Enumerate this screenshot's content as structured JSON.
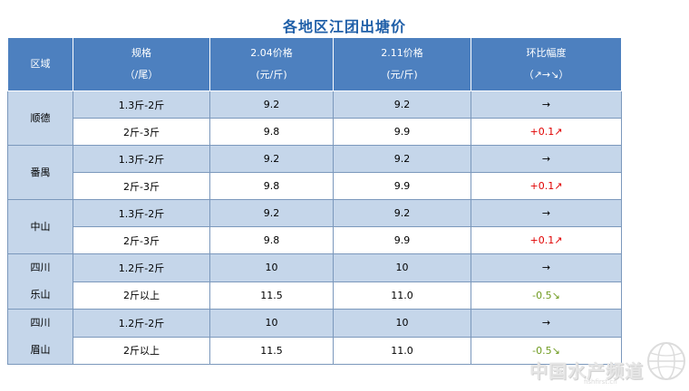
{
  "title": "各地区江团出塘价",
  "header": {
    "region": "区域",
    "spec_l1": "规格",
    "spec_l2": "（/尾）",
    "price1_l1": "2.04价格",
    "price1_l2": "(元/斤)",
    "price2_l1": "2.11价格",
    "price2_l2": "(元/斤)",
    "change_l1": "环比幅度",
    "change_l2": "（↗→↘）"
  },
  "regions": [
    {
      "line1": "顺德",
      "line2": ""
    },
    {
      "line1": "番禺",
      "line2": ""
    },
    {
      "line1": "中山",
      "line2": ""
    },
    {
      "line1": "四川",
      "line2": "乐山"
    },
    {
      "line1": "四川",
      "line2": "眉山"
    }
  ],
  "rows": [
    {
      "spec": "1.3斤-2斤",
      "p1": "9.2",
      "p2": "9.2",
      "change": "→",
      "trend": "flat"
    },
    {
      "spec": "2斤-3斤",
      "p1": "9.8",
      "p2": "9.9",
      "change": "+0.1↗",
      "trend": "up"
    },
    {
      "spec": "1.3斤-2斤",
      "p1": "9.2",
      "p2": "9.2",
      "change": "→",
      "trend": "flat"
    },
    {
      "spec": "2斤-3斤",
      "p1": "9.8",
      "p2": "9.9",
      "change": "+0.1↗",
      "trend": "up"
    },
    {
      "spec": "1.3斤-2斤",
      "p1": "9.2",
      "p2": "9.2",
      "change": "→",
      "trend": "flat"
    },
    {
      "spec": "2斤-3斤",
      "p1": "9.8",
      "p2": "9.9",
      "change": "+0.1↗",
      "trend": "up"
    },
    {
      "spec": "1.2斤-2斤",
      "p1": "10",
      "p2": "10",
      "change": "→",
      "trend": "flat"
    },
    {
      "spec": "2斤以上",
      "p1": "11.5",
      "p2": "11.0",
      "change": "-0.5↘",
      "trend": "down"
    },
    {
      "spec": "1.2斤-2斤",
      "p1": "10",
      "p2": "10",
      "change": "→",
      "trend": "flat"
    },
    {
      "spec": "2斤以上",
      "p1": "11.5",
      "p2": "11.0",
      "change": "-0.5↘",
      "trend": "down"
    }
  ],
  "colors": {
    "header_bg": "#4d80bf",
    "band_blue": "#c5d6ea",
    "up": "#e00000",
    "down": "#6e9a1e",
    "title": "#1f5fa8"
  },
  "watermark": {
    "text": "中国水产频道",
    "url": "fishfirst.cn",
    "icon": "globe-icon"
  }
}
